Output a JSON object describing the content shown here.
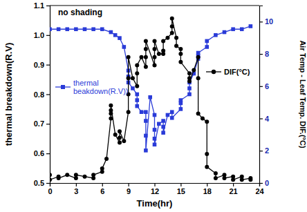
{
  "chart_data": {
    "type": "line",
    "annotations": [
      "no shading"
    ],
    "x_label": "Time(hr)",
    "y_label": "thermal breakdown(R.V)",
    "y2_label": "Air Temp - Leaf Temp. DIF.(°C)",
    "xlim": [
      0,
      24
    ],
    "xticks": [
      0,
      3,
      6,
      9,
      12,
      15,
      18,
      21,
      24
    ],
    "ylim": [
      0.5,
      1.1
    ],
    "yticks": [
      0.5,
      0.6,
      0.7,
      0.8,
      0.9,
      {
        "value": 1,
        "label": "1.0"
      },
      1.1
    ],
    "y2lim": [
      0,
      11
    ],
    "y2ticks": [
      0,
      2,
      4,
      6,
      8,
      10
    ],
    "grid": false,
    "series": [
      {
        "name": "thermal beakdown(R.V))",
        "color": "#2a3bd8",
        "marker": "square",
        "line_style": "solid",
        "x": [
          0,
          1,
          2,
          3,
          4,
          5,
          6,
          7,
          7.5,
          8,
          8.5,
          9,
          9,
          9,
          9.5,
          10,
          10,
          10,
          10.5,
          11,
          11,
          11,
          11,
          11.5,
          12,
          12,
          12,
          12,
          12.5,
          13,
          13,
          13,
          13.5,
          14,
          14,
          15,
          15,
          15,
          16,
          16,
          16,
          16.5,
          17,
          17,
          17,
          18,
          18,
          19,
          20,
          21,
          22,
          23
        ],
        "values": [
          1.02,
          1.02,
          1.02,
          1.02,
          1.02,
          1.02,
          1.02,
          1.01,
          1.0,
          0.99,
          0.96,
          0.88,
          0.86,
          0.84,
          0.82,
          0.8,
          0.78,
          0.76,
          0.74,
          0.74,
          0.71,
          0.66,
          0.61,
          0.79,
          0.73,
          0.68,
          0.65,
          0.63,
          0.7,
          0.71,
          0.69,
          0.67,
          0.73,
          0.74,
          0.72,
          0.75,
          0.77,
          0.78,
          0.8,
          0.82,
          0.84,
          0.87,
          0.92,
          0.93,
          0.94,
          0.96,
          0.98,
          1.0,
          1.01,
          1.02,
          1.02,
          1.03
        ]
      },
      {
        "name": "DIF(°C)",
        "color": "#000000",
        "marker": "circle",
        "line_style": "solid",
        "axis": "y2",
        "x": [
          0,
          0,
          1,
          1,
          2,
          3,
          3,
          4,
          5,
          5,
          6,
          6,
          6.5,
          7,
          7,
          7,
          7,
          7.5,
          8,
          8,
          8,
          8.5,
          9,
          9,
          9,
          9,
          9.5,
          10,
          10,
          10,
          10.5,
          11,
          11,
          11,
          11,
          12,
          12,
          12,
          12,
          12.5,
          13,
          13,
          13,
          13.5,
          14,
          14,
          14,
          14.5,
          14.5,
          15,
          15,
          15,
          16,
          16,
          16,
          16.5,
          17,
          17,
          17,
          17.5,
          18,
          18,
          18,
          19,
          19,
          20,
          20,
          21,
          21,
          22,
          22,
          23,
          23
        ],
        "values": [
          0.5,
          0.2,
          0.4,
          0.3,
          0.5,
          0.3,
          0.5,
          0.4,
          0.3,
          0.5,
          0.7,
          0.9,
          1.5,
          4.0,
          4.3,
          4.5,
          4.8,
          3.0,
          2.5,
          2.8,
          3.2,
          2.6,
          4.4,
          5.5,
          6.5,
          7.8,
          6.5,
          6.0,
          6.8,
          7.3,
          7.8,
          7.2,
          7.8,
          8.3,
          8.8,
          7.3,
          7.8,
          8.3,
          8.8,
          8.0,
          8.0,
          8.2,
          8.8,
          9.0,
          9.3,
          9.7,
          10.2,
          9.0,
          8.5,
          8.3,
          8.0,
          7.5,
          6.8,
          6.5,
          6.3,
          7.0,
          7.8,
          6.5,
          4.3,
          4.0,
          3.8,
          1.8,
          1.0,
          0.6,
          0.3,
          0.5,
          0.3,
          0.4,
          0.2,
          0.4,
          0.2,
          0.3,
          0.2
        ]
      }
    ]
  }
}
